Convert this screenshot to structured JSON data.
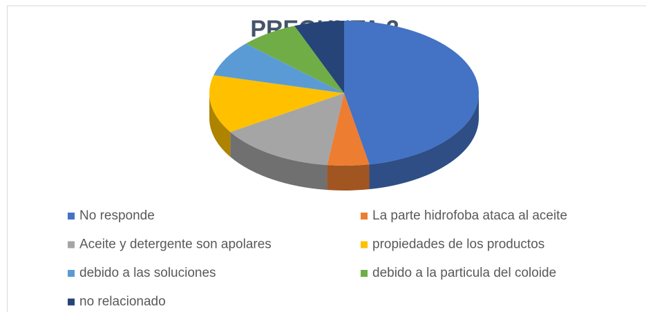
{
  "chart_data": {
    "type": "pie3d",
    "title": "PREGUNTA 2",
    "categories": [
      "No responde",
      "La parte hidrofoba ataca al aceite",
      "Aceite y detergente son apolares",
      "propiedades de los productos",
      "debido a las soluciones",
      "debido a la particula del coloide",
      "no relacionado"
    ],
    "values": [
      47,
      5,
      14,
      13,
      8,
      7,
      6
    ],
    "colors": [
      "#4472c4",
      "#ed7d31",
      "#a5a5a5",
      "#ffc000",
      "#5b9bd5",
      "#70ad47",
      "#264478"
    ],
    "legend": "bottom"
  }
}
